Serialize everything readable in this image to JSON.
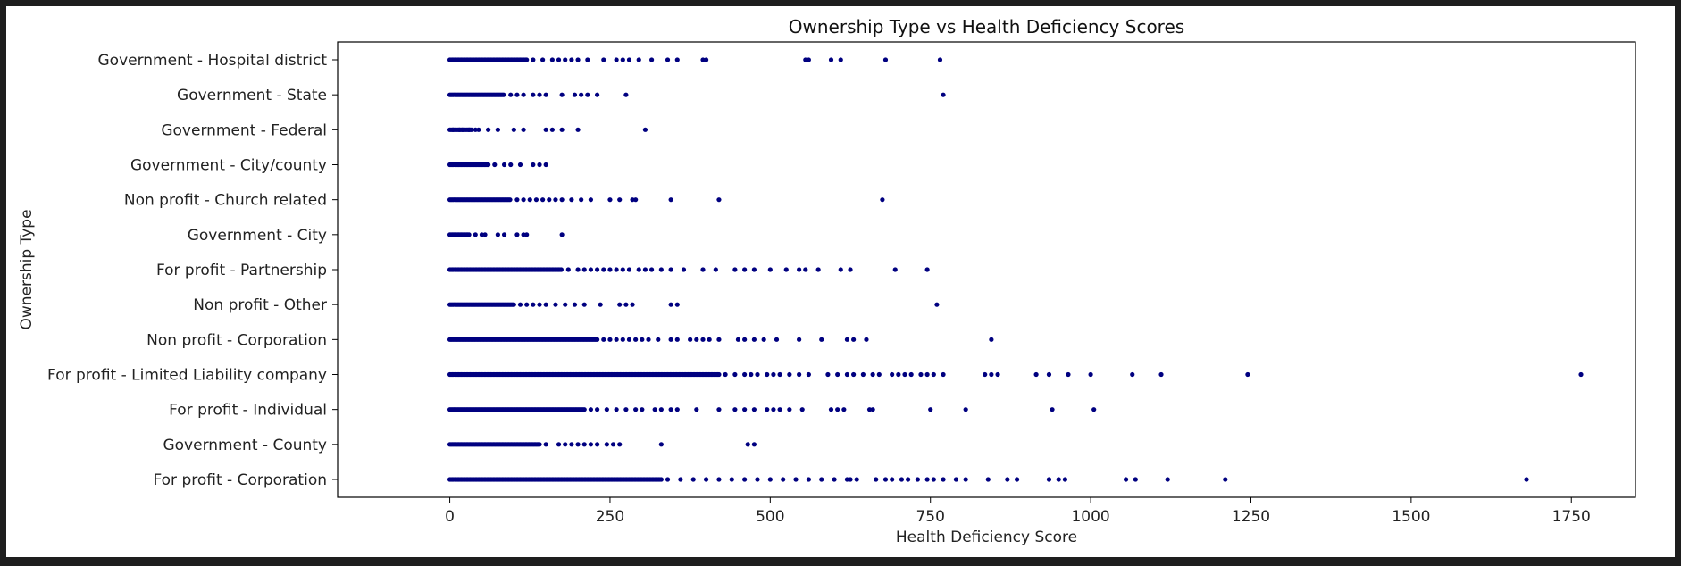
{
  "chart_data": {
    "type": "scatter",
    "title": "Ownership Type vs Health Deficiency Scores",
    "xlabel": "Health Deficiency Score",
    "ylabel": "Ownership Type",
    "xlim": [
      -175,
      1850
    ],
    "xticks": [
      0,
      250,
      500,
      750,
      1000,
      1250,
      1500,
      1750
    ],
    "xtick_labels": [
      "0",
      "250",
      "500",
      "750",
      "1000",
      "1250",
      "1500",
      "1750"
    ],
    "grid": false,
    "marker_color": "#000080",
    "categories": [
      "For profit - Corporation",
      "Government - County",
      "For profit - Individual",
      "For profit - Limited Liability company",
      "Non profit - Corporation",
      "Non profit - Other",
      "For profit - Partnership",
      "Government - City",
      "Non profit - Church related",
      "Government - City/county",
      "Government - Federal",
      "Government - State",
      "Government - Hospital district"
    ],
    "series": [
      {
        "category": "For profit - Corporation",
        "dense_max": 330,
        "x": [
          340,
          360,
          380,
          400,
          420,
          440,
          460,
          480,
          500,
          520,
          540,
          560,
          580,
          600,
          620,
          625,
          635,
          665,
          680,
          690,
          705,
          715,
          730,
          745,
          755,
          770,
          790,
          805,
          840,
          870,
          885,
          935,
          950,
          960,
          1055,
          1070,
          1120,
          1210,
          1680
        ]
      },
      {
        "category": "Government - County",
        "dense_max": 140,
        "x": [
          150,
          170,
          180,
          190,
          200,
          210,
          220,
          230,
          245,
          255,
          265,
          330,
          465,
          475
        ]
      },
      {
        "category": "For profit - Individual",
        "dense_max": 210,
        "x": [
          220,
          230,
          245,
          260,
          275,
          290,
          300,
          320,
          330,
          345,
          355,
          385,
          420,
          445,
          460,
          475,
          495,
          505,
          515,
          530,
          550,
          595,
          605,
          615,
          655,
          660,
          750,
          805,
          940,
          1005
        ]
      },
      {
        "category": "For profit - Limited Liability company",
        "dense_max": 420,
        "x": [
          430,
          445,
          460,
          470,
          480,
          495,
          505,
          515,
          530,
          545,
          560,
          590,
          605,
          620,
          630,
          645,
          660,
          670,
          690,
          700,
          710,
          720,
          735,
          745,
          755,
          770,
          835,
          845,
          855,
          915,
          935,
          965,
          1000,
          1065,
          1110,
          1245,
          1765
        ]
      },
      {
        "category": "Non profit - Corporation",
        "dense_max": 230,
        "x": [
          240,
          250,
          260,
          270,
          280,
          290,
          300,
          310,
          325,
          345,
          355,
          375,
          385,
          395,
          405,
          420,
          450,
          460,
          475,
          490,
          510,
          545,
          580,
          620,
          630,
          650,
          845
        ]
      },
      {
        "category": "Non profit - Other",
        "dense_max": 100,
        "x": [
          110,
          120,
          130,
          140,
          150,
          165,
          180,
          195,
          210,
          235,
          265,
          275,
          285,
          345,
          355,
          760
        ]
      },
      {
        "category": "For profit - Partnership",
        "dense_max": 175,
        "x": [
          185,
          200,
          210,
          220,
          230,
          240,
          250,
          260,
          270,
          280,
          295,
          305,
          315,
          330,
          345,
          365,
          395,
          415,
          445,
          460,
          475,
          500,
          525,
          545,
          555,
          575,
          610,
          625,
          695,
          745
        ]
      },
      {
        "category": "Government - City",
        "dense_max": 30,
        "x": [
          40,
          50,
          55,
          75,
          85,
          105,
          115,
          120,
          175
        ]
      },
      {
        "category": "Non profit - Church related",
        "dense_max": 95,
        "x": [
          105,
          115,
          125,
          135,
          145,
          155,
          165,
          175,
          190,
          205,
          220,
          250,
          265,
          285,
          290,
          345,
          420,
          675
        ]
      },
      {
        "category": "Government - City/county",
        "dense_max": 60,
        "x": [
          70,
          85,
          95,
          110,
          130,
          140,
          150
        ]
      },
      {
        "category": "Government - Federal",
        "dense_max": 35,
        "x": [
          5,
          15,
          20,
          30,
          40,
          45,
          60,
          75,
          100,
          115,
          150,
          160,
          175,
          200,
          305
        ]
      },
      {
        "category": "Government - State",
        "dense_max": 85,
        "x": [
          95,
          105,
          115,
          130,
          140,
          150,
          175,
          195,
          205,
          215,
          230,
          275,
          770
        ]
      },
      {
        "category": "Government - Hospital district",
        "dense_max": 120,
        "x": [
          130,
          145,
          160,
          170,
          180,
          190,
          200,
          215,
          240,
          260,
          270,
          280,
          295,
          315,
          340,
          355,
          395,
          400,
          555,
          560,
          595,
          610,
          680,
          765
        ]
      }
    ]
  }
}
